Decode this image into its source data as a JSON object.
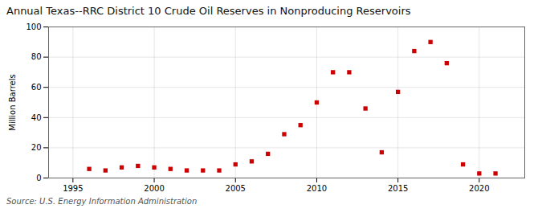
{
  "chart_data": {
    "type": "scatter",
    "title": "Annual Texas--RRC District 10 Crude Oil Reserves in Nonproducing Reservoirs",
    "ylabel": "Million Barrels",
    "source": "Source: U.S. Energy Information Administration",
    "x": [
      1996,
      1997,
      1998,
      1999,
      2000,
      2001,
      2002,
      2003,
      2004,
      2005,
      2006,
      2007,
      2008,
      2009,
      2010,
      2011,
      2012,
      2013,
      2014,
      2015,
      2016,
      2017,
      2018,
      2019,
      2020,
      2021
    ],
    "values": [
      6,
      5,
      7,
      8,
      7,
      6,
      5,
      5,
      5,
      9,
      11,
      16,
      29,
      35,
      50,
      70,
      70,
      46,
      17,
      57,
      84,
      90,
      76,
      9,
      3,
      3
    ],
    "color": "#cc0000",
    "marker": "square",
    "xlim": [
      1993.5,
      2022.8
    ],
    "ylim": [
      0,
      100
    ],
    "xticks": [
      1995,
      2000,
      2005,
      2010,
      2015,
      2020
    ],
    "yticks": [
      0,
      20,
      40,
      60,
      80,
      100
    ],
    "grid": true
  }
}
